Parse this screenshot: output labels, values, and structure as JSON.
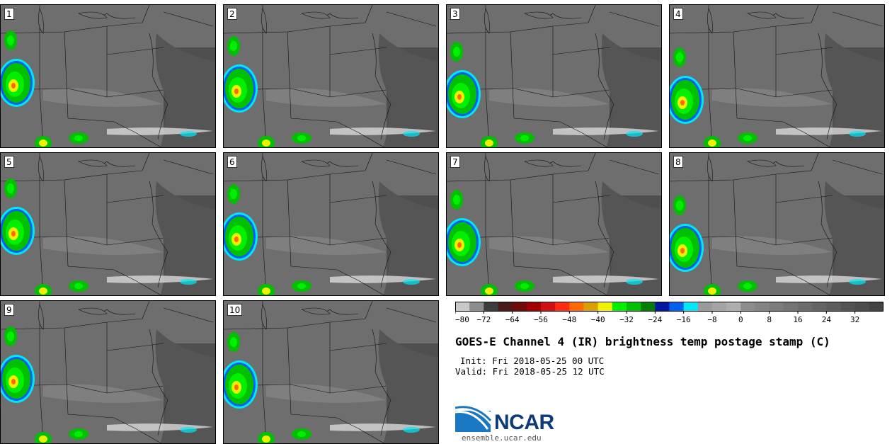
{
  "title": "GOES-E Channel 4 (IR) brightness temp postage stamp (C)",
  "init": "Init: Fri 2018-05-25 00 UTC",
  "valid": "Valid: Fri 2018-05-25 12 UTC",
  "panels": [
    "1",
    "2",
    "3",
    "4",
    "5",
    "6",
    "7",
    "8",
    "9",
    "10"
  ],
  "colorbar": {
    "tick_labels": [
      "−80",
      "−72",
      "−64",
      "−56",
      "−48",
      "−40",
      "−32",
      "−24",
      "−16",
      "−8",
      "0",
      "8",
      "16",
      "24",
      "32"
    ],
    "colors": [
      "#c8c8c8",
      "#8c8c8c",
      "#3c3c3c",
      "#4a1a1a",
      "#6e0a0a",
      "#a00000",
      "#d01010",
      "#ff2a10",
      "#ff6a00",
      "#d8a000",
      "#f0f000",
      "#00f000",
      "#00c000",
      "#008000",
      "#0018a0",
      "#0060f0",
      "#00e8f8",
      "#9a9a9a",
      "#a4a4a4",
      "#aeaeae",
      "#8c8c8c",
      "#848484",
      "#7c7c7c",
      "#747474",
      "#6c6c6c",
      "#646464",
      "#5c5c5c",
      "#545454",
      "#4c4c4c",
      "#444444"
    ]
  },
  "logo": {
    "name": "NCAR",
    "url": "ensemble.ucar.edu"
  }
}
